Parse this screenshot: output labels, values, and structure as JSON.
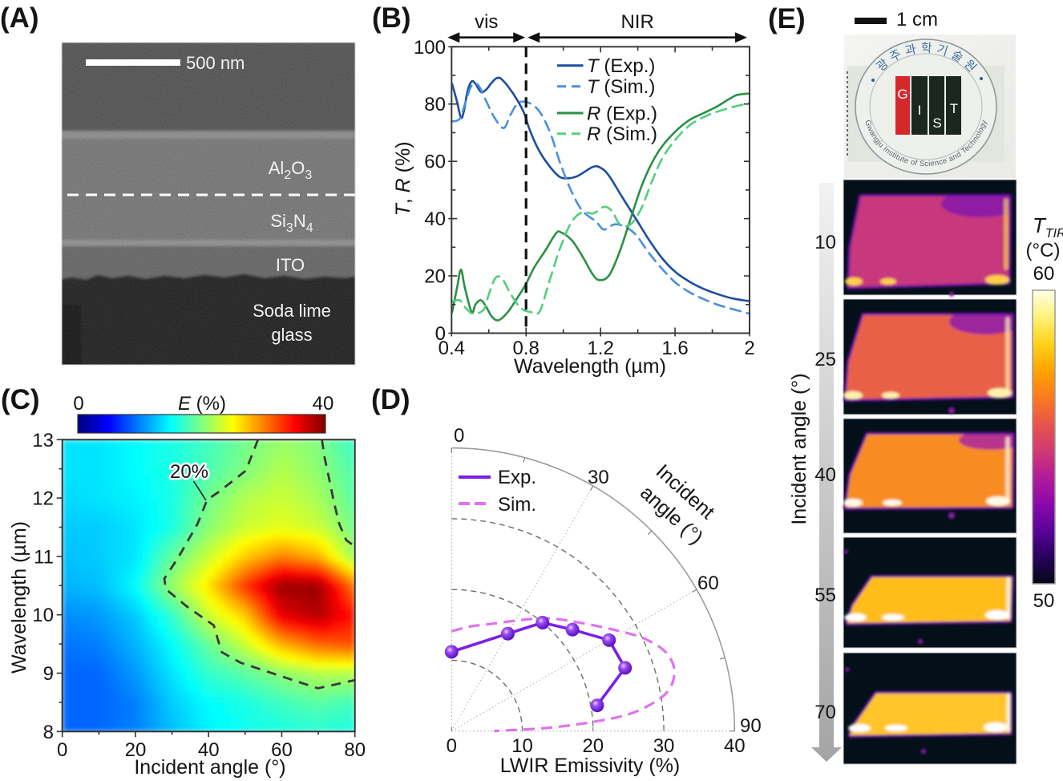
{
  "panel_a": {
    "label": "(A)",
    "scale_bar": "500 nm",
    "layers": {
      "al2o3": [
        "Al",
        "2",
        "O",
        "3"
      ],
      "si3n4": [
        "Si",
        "3",
        "N",
        "4"
      ],
      "ito": "ITO",
      "glass": [
        "Soda lime",
        "glass"
      ]
    }
  },
  "panel_b": {
    "label": "(B)"
  },
  "panel_c": {
    "label": "(C)"
  },
  "panel_d": {
    "label": "(D)"
  },
  "panel_e": {
    "label": "(E)",
    "scale_bar": "1 cm",
    "photo": {
      "top_text": "광주과학기술원",
      "bottom_text": "Gwangju Institute of Science and Technology",
      "letters": [
        "G",
        "I",
        "S",
        "T"
      ],
      "block_colors": [
        "#d6282c",
        "#1b2820",
        "#1b2820",
        "#1b2820"
      ]
    },
    "axis_label": "Incident angle (°)",
    "thermal_images": [
      {
        "angle_label": "10",
        "base_color": "#c8387c",
        "cool_color": "#8a1ca8",
        "hot_color": "#ffcf4a"
      },
      {
        "angle_label": "25",
        "base_color": "#e9604a",
        "cool_color": "#961fa6",
        "hot_color": "#fff2b0"
      },
      {
        "angle_label": "40",
        "base_color": "#f88c22",
        "cool_color": "#b02c98",
        "hot_color": "#fffbe6"
      },
      {
        "angle_label": "55",
        "base_color": "#ffbd1e",
        "cool_color": "#ffa812",
        "hot_color": "#ffffff"
      },
      {
        "angle_label": "70",
        "base_color": "#ffc52c",
        "cool_color": "#ffae1c",
        "hot_color": "#ffffff"
      }
    ],
    "colorbar": {
      "symbol": "T",
      "subscript": "TIR",
      "unit": "(°C)",
      "max_label": "60",
      "min_label": "50",
      "range": [
        50,
        60
      ],
      "stops": [
        "#fffee4",
        "#fff27a",
        "#ffd21a",
        "#ffa400",
        "#fb7b1e",
        "#e9544a",
        "#d13a72",
        "#b21c98",
        "#8c09ad",
        "#5a0399",
        "#28025e",
        "#070714"
      ]
    }
  },
  "chart_data": [
    {
      "panel": "B",
      "type": "line",
      "title": "",
      "xlabel": "Wavelength (µm)",
      "ylabel": "T, R (%)",
      "ylabel_parts": [
        "T",
        ", ",
        "R",
        " (%)"
      ],
      "x_axis": {
        "range": [
          0.4,
          2.0
        ],
        "ticks": [
          0.4,
          0.8,
          1.2,
          1.6,
          2.0
        ],
        "tick_labels": [
          "0.4",
          "0.8",
          "1.2",
          "1.6",
          "2"
        ],
        "minor_ticks": [
          0.6,
          1.0,
          1.4,
          1.8
        ]
      },
      "y_axis": {
        "range": [
          0,
          100
        ],
        "ticks": [
          0,
          20,
          40,
          60,
          80,
          100
        ],
        "tick_labels": [
          "0",
          "20",
          "40",
          "60",
          "80",
          "100"
        ],
        "minor_ticks": [
          10,
          30,
          50,
          70,
          90
        ]
      },
      "grid": false,
      "divider_x": 0.8,
      "regions": [
        {
          "label": "vis",
          "from": 0.4,
          "to": 0.8
        },
        {
          "label": "NIR",
          "from": 0.8,
          "to": 2.0
        }
      ],
      "legend": {
        "position": "top-right"
      },
      "series": [
        {
          "id": "t-exp",
          "name": "T (Exp.)",
          "symbol": "T",
          "suffix": " (Exp.)",
          "color": "#1d4e9e",
          "style": "solid",
          "x": [
            0.403,
            0.429,
            0.45,
            0.465,
            0.486,
            0.508,
            0.529,
            0.558,
            0.587,
            0.615,
            0.644,
            0.673,
            0.73,
            0.787,
            0.816,
            0.859,
            0.902,
            0.96,
            1.003,
            1.074,
            1.16,
            1.204,
            1.247,
            1.318,
            1.39,
            1.462,
            1.534,
            1.605,
            1.677,
            1.749,
            1.821,
            1.892,
            1.964,
            2.0
          ],
          "y": [
            87.0,
            80.9,
            75.3,
            77.2,
            84.6,
            87.9,
            87.0,
            84.2,
            85.1,
            87.4,
            89.1,
            88.4,
            83.7,
            77.2,
            71.6,
            65.1,
            60.4,
            55.7,
            54.1,
            54.8,
            58.1,
            57.6,
            54.8,
            47.3,
            39.9,
            32.4,
            25.9,
            21.2,
            18.0,
            15.6,
            13.8,
            12.4,
            11.5,
            11.2
          ]
        },
        {
          "id": "t-sim",
          "name": "T (Sim.)",
          "symbol": "T",
          "suffix": " (Sim.)",
          "color": "#4a8fe0",
          "style": "dashed",
          "x": [
            0.4,
            0.443,
            0.472,
            0.508,
            0.544,
            0.587,
            0.63,
            0.68,
            0.716,
            0.759,
            0.816,
            0.874,
            0.931,
            0.988,
            1.046,
            1.103,
            1.175,
            1.218,
            1.275,
            1.332,
            1.39,
            1.462,
            1.534,
            1.605,
            1.677,
            1.749,
            1.821,
            1.892,
            2.0
          ],
          "y": [
            73.9,
            74.8,
            80.0,
            86.5,
            86.5,
            80.9,
            75.3,
            71.6,
            76.2,
            80.4,
            80.4,
            77.2,
            69.7,
            58.5,
            49.2,
            42.7,
            39.0,
            36.2,
            38.0,
            37.1,
            34.3,
            27.8,
            22.2,
            17.5,
            14.3,
            12.0,
            10.1,
            8.7,
            6.8
          ]
        },
        {
          "id": "r-exp",
          "name": "R (Exp.)",
          "symbol": "R",
          "suffix": " (Exp.)",
          "color": "#2a9145",
          "style": "solid",
          "x": [
            0.403,
            0.429,
            0.45,
            0.472,
            0.508,
            0.529,
            0.558,
            0.587,
            0.615,
            0.651,
            0.701,
            0.759,
            0.802,
            0.845,
            0.902,
            0.96,
            0.988,
            1.046,
            1.103,
            1.16,
            1.196,
            1.247,
            1.304,
            1.361,
            1.419,
            1.476,
            1.534,
            1.605,
            1.677,
            1.749,
            1.821,
            1.892,
            1.936,
            2.0
          ],
          "y": [
            7.3,
            15.7,
            22.2,
            15.7,
            7.3,
            10.1,
            11.5,
            9.1,
            5.9,
            4.5,
            7.3,
            12.9,
            17.5,
            23.1,
            28.7,
            34.8,
            35.2,
            32.4,
            26.8,
            20.3,
            18.5,
            20.3,
            28.7,
            39.9,
            51.1,
            59.5,
            65.5,
            70.6,
            74.4,
            76.7,
            79.0,
            81.8,
            83.2,
            83.7
          ]
        },
        {
          "id": "r-sim",
          "name": "R (Sim.)",
          "symbol": "R",
          "suffix": " (Sim.)",
          "color": "#52cf7c",
          "style": "dashed",
          "x": [
            0.4,
            0.443,
            0.472,
            0.515,
            0.572,
            0.601,
            0.637,
            0.673,
            0.716,
            0.773,
            0.83,
            0.874,
            0.931,
            0.988,
            1.046,
            1.103,
            1.16,
            1.218,
            1.261,
            1.304,
            1.361,
            1.419,
            1.476,
            1.534,
            1.605,
            1.677,
            1.749,
            1.821,
            1.892,
            2.0
          ],
          "y": [
            11.0,
            11.5,
            9.1,
            6.8,
            8.2,
            13.8,
            19.4,
            18.9,
            13.8,
            8.7,
            7.3,
            7.7,
            19.4,
            30.6,
            39.0,
            42.2,
            41.8,
            44.1,
            42.7,
            38.0,
            38.0,
            43.6,
            53.0,
            61.3,
            67.8,
            72.5,
            75.3,
            77.2,
            78.6,
            80.4
          ]
        }
      ]
    },
    {
      "panel": "C",
      "type": "heatmap",
      "title": "",
      "xlabel": "Incident angle (°)",
      "ylabel": "Wavelength (µm)",
      "x_axis": {
        "range": [
          0,
          80
        ],
        "ticks": [
          0,
          20,
          40,
          60,
          80
        ],
        "tick_labels": [
          "0",
          "20",
          "40",
          "60",
          "80"
        ],
        "minor_ticks": [
          10,
          30,
          50,
          70
        ]
      },
      "y_axis": {
        "range": [
          8,
          13
        ],
        "ticks": [
          8,
          9,
          10,
          11,
          12,
          13
        ],
        "tick_labels": [
          "8",
          "9",
          "10",
          "11",
          "12",
          "13"
        ],
        "minor_ticks": [
          8.5,
          9.5,
          10.5,
          11.5,
          12.5
        ]
      },
      "x": [
        0,
        10,
        20,
        30,
        40,
        50,
        60,
        70,
        80
      ],
      "y": [
        8,
        8.5,
        9,
        9.5,
        10,
        10.5,
        11,
        11.5,
        12,
        12.5,
        13
      ],
      "z": [
        [
          9,
          9,
          10,
          12.5,
          14.5,
          15.5,
          16,
          16.5,
          16
        ],
        [
          9,
          9,
          10,
          13,
          15,
          16,
          17.5,
          18.5,
          17.5
        ],
        [
          9,
          9,
          11,
          14,
          17,
          18.5,
          20.5,
          22,
          22
        ],
        [
          9.5,
          10,
          12,
          15,
          19,
          23,
          28,
          31,
          32
        ],
        [
          10.5,
          11,
          13,
          17,
          23,
          27,
          36,
          38,
          34
        ],
        [
          12,
          12.5,
          15,
          21,
          26,
          33,
          39,
          39,
          30
        ],
        [
          12.5,
          13,
          14,
          19,
          23,
          27,
          30,
          28,
          21
        ],
        [
          13,
          13,
          14,
          16,
          20.5,
          23,
          24,
          23,
          19.5
        ],
        [
          13.5,
          14,
          14.5,
          16,
          19.5,
          22,
          23,
          21.5,
          18.5
        ],
        [
          14,
          14,
          15,
          16,
          18,
          20,
          22,
          20.5,
          18
        ],
        [
          14,
          14,
          15,
          16,
          17.5,
          19.5,
          21,
          20,
          17
        ]
      ],
      "colorbar": {
        "title_parts": [
          "E",
          " (%)"
        ],
        "range": [
          0,
          40
        ],
        "min_label": "0",
        "max_label": "40",
        "colormap": "jet",
        "position": "top"
      },
      "contours": [
        {
          "level": 20,
          "label": "20%",
          "paths": [
            [
              [
                53.5,
                13
              ],
              [
                50.2,
                12.47
              ],
              [
                42.9,
                12.11
              ],
              [
                39.6,
                11.97
              ],
              [
                37,
                11.56
              ],
              [
                31.9,
                11.0
              ],
              [
                27.9,
                10.62
              ],
              [
                28.3,
                10.44
              ],
              [
                34.1,
                10.14
              ],
              [
                41.4,
                9.82
              ],
              [
                42.9,
                9.5
              ],
              [
                43.6,
                9.36
              ],
              [
                48.7,
                9.18
              ],
              [
                59.7,
                8.95
              ],
              [
                69.9,
                8.74
              ],
              [
                80,
                8.88
              ]
            ],
            [
              [
                71,
                13
              ],
              [
                71.7,
                12.7
              ],
              [
                72.8,
                12.38
              ],
              [
                74.3,
                11.92
              ],
              [
                75.7,
                11.56
              ],
              [
                77.6,
                11.28
              ],
              [
                80,
                11.17
              ]
            ]
          ],
          "label_anchor": [
            39.6,
            11.97
          ]
        }
      ]
    },
    {
      "panel": "D",
      "type": "line",
      "projection": "polar-quadrant",
      "title": "",
      "theta_axis": {
        "label_lines": [
          "Incident",
          "angle (°)"
        ],
        "range": [
          0,
          90
        ],
        "ticks": [
          0,
          30,
          60,
          90
        ],
        "tick_labels": [
          "0",
          "30",
          "60",
          "90"
        ],
        "minor_ticks": [
          15,
          45,
          75
        ]
      },
      "r_axis": {
        "label": "LWIR Emissivity (%)",
        "range": [
          0,
          40
        ],
        "ticks": [
          0,
          10,
          20,
          30,
          40
        ],
        "tick_labels": [
          "0",
          "10",
          "20",
          "30",
          "40"
        ],
        "grid": [
          10,
          20,
          30
        ]
      },
      "legend": {
        "position": "top-left"
      },
      "series": [
        {
          "id": "exp",
          "name": "Exp.",
          "color": "#7b1fe6",
          "style": "solid",
          "markers": true,
          "theta": [
            0,
            30,
            40,
            50,
            60,
            70,
            80
          ],
          "r": [
            11.2,
            15.9,
            20.0,
            22.3,
            25.7,
            26.1,
            20.9
          ]
        },
        {
          "id": "sim",
          "name": "Sim.",
          "color": "#df72f0",
          "style": "dashed",
          "markers": false,
          "theta": [
            0,
            10,
            20,
            30,
            40,
            50,
            60,
            65,
            70,
            75,
            80,
            84,
            86,
            88,
            90
          ],
          "r": [
            14.1,
            15.0,
            16.1,
            18.0,
            20.8,
            23.8,
            28.0,
            30.5,
            32.3,
            32.6,
            30.8,
            26.2,
            21.0,
            14.0,
            6.0
          ]
        }
      ]
    }
  ]
}
